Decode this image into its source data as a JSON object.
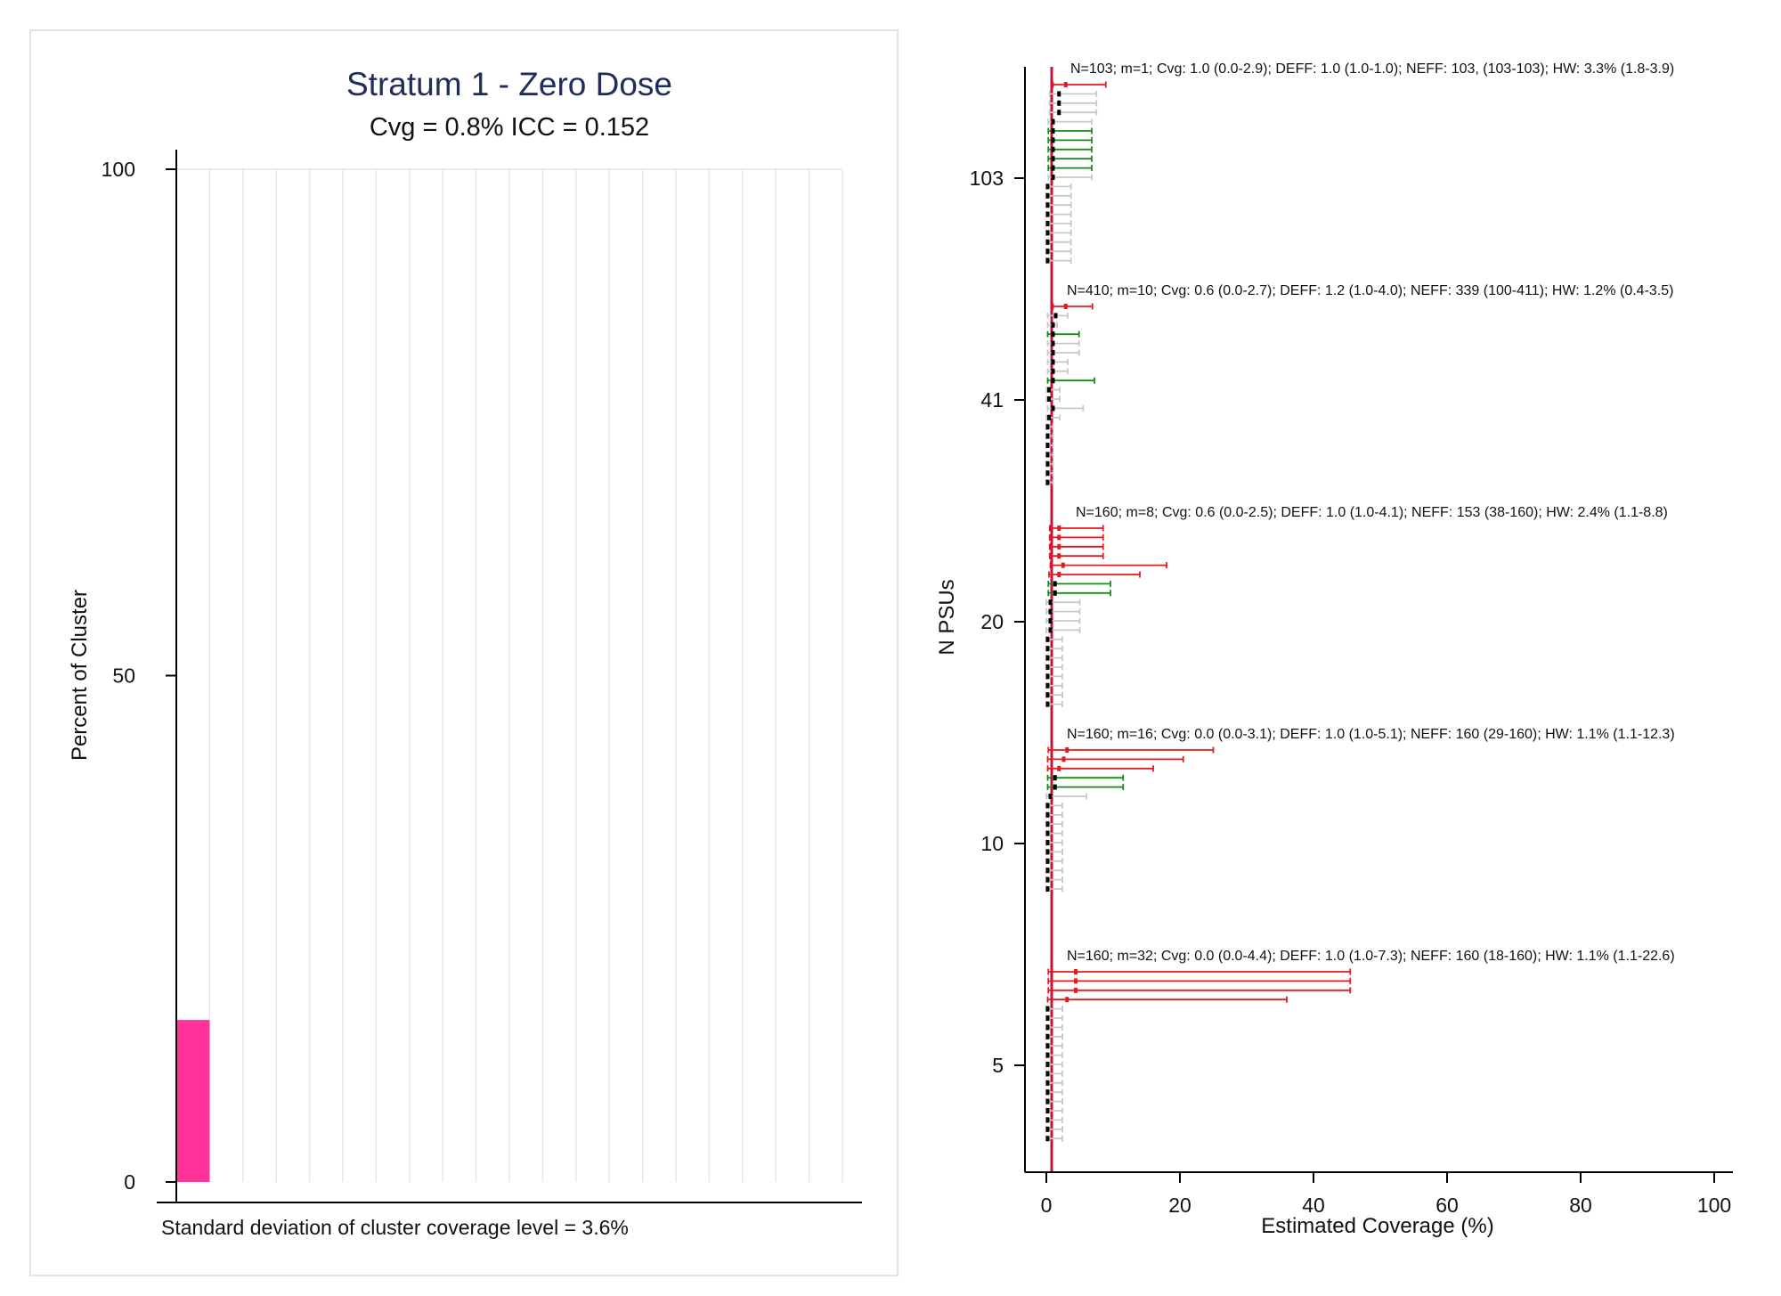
{
  "left_panel": {
    "title": "Stratum 1 - Zero Dose",
    "subtitle": "Cvg = 0.8% ICC = 0.152",
    "footnote": "Standard deviation of cluster coverage level = 3.6%"
  },
  "right_panel": {
    "ylabel": "N PSUs",
    "xlabel": "Estimated Coverage (%)"
  },
  "colors": {
    "bar": "#ff3399",
    "refline": "#c0143c",
    "ci_gray": "#c8c8c8",
    "ci_red": "#e41a1c",
    "ci_green": "#1a8a1a",
    "point_black": "#000000",
    "grid": "#e6e6e6",
    "title": "#1f2d5a"
  },
  "chart_data": [
    {
      "type": "bar",
      "title": "Stratum 1 - Zero Dose",
      "subtitle": "Cvg = 0.8% ICC = 0.152",
      "xlabel": "Standard deviation of cluster coverage level = 3.6%",
      "ylabel": "Percent of Cluster",
      "bins": 20,
      "values": [
        16,
        0,
        0,
        0,
        0,
        0,
        0,
        0,
        0,
        0,
        0,
        0,
        0,
        0,
        0,
        0,
        0,
        0,
        0,
        0
      ],
      "ylim": [
        0,
        100
      ],
      "yticks": [
        0,
        50,
        100
      ],
      "grid": true
    },
    {
      "type": "scatter",
      "xlabel": "Estimated Coverage (%)",
      "ylabel": "N PSUs",
      "xlim": [
        0,
        100
      ],
      "xticks": [
        0,
        20,
        40,
        60,
        80,
        100
      ],
      "yticks": [
        "5",
        "10",
        "20",
        "41",
        "103"
      ],
      "reference_line_x": 0.8,
      "groups": [
        {
          "ytick": "103",
          "annotation": "N=103; m=1; Cvg: 1.0 (0.0-2.9); DEFF: 1.0 (1.0-1.0); NEFF: 103, (103-103); HW: 3.3% (1.8-3.9)",
          "intervals": [
            {
              "est": 2.9,
              "lo": 1.0,
              "hi": 8.9,
              "c": "red"
            },
            {
              "est": 1.9,
              "lo": 0.5,
              "hi": 7.5,
              "c": "gray"
            },
            {
              "est": 1.9,
              "lo": 0.5,
              "hi": 7.5,
              "c": "gray"
            },
            {
              "est": 1.9,
              "lo": 0.5,
              "hi": 7.5,
              "c": "gray"
            },
            {
              "est": 1.0,
              "lo": 0.3,
              "hi": 6.8,
              "c": "gray"
            },
            {
              "est": 1.0,
              "lo": 0.3,
              "hi": 6.8,
              "c": "green"
            },
            {
              "est": 1.0,
              "lo": 0.3,
              "hi": 6.8,
              "c": "green"
            },
            {
              "est": 1.0,
              "lo": 0.3,
              "hi": 6.8,
              "c": "green"
            },
            {
              "est": 1.0,
              "lo": 0.3,
              "hi": 6.8,
              "c": "green"
            },
            {
              "est": 1.0,
              "lo": 0.3,
              "hi": 6.8,
              "c": "green"
            },
            {
              "est": 1.0,
              "lo": 0.3,
              "hi": 6.8,
              "c": "gray"
            },
            {
              "est": 0.2,
              "lo": 0.0,
              "hi": 3.7,
              "c": "gray"
            },
            {
              "est": 0.2,
              "lo": 0.0,
              "hi": 3.7,
              "c": "gray"
            },
            {
              "est": 0.2,
              "lo": 0.0,
              "hi": 3.7,
              "c": "gray"
            },
            {
              "est": 0.2,
              "lo": 0.0,
              "hi": 3.7,
              "c": "gray"
            },
            {
              "est": 0.2,
              "lo": 0.0,
              "hi": 3.7,
              "c": "gray"
            },
            {
              "est": 0.2,
              "lo": 0.0,
              "hi": 3.7,
              "c": "gray"
            },
            {
              "est": 0.2,
              "lo": 0.0,
              "hi": 3.7,
              "c": "gray"
            },
            {
              "est": 0.2,
              "lo": 0.0,
              "hi": 3.7,
              "c": "gray"
            },
            {
              "est": 0.2,
              "lo": 0.0,
              "hi": 3.7,
              "c": "gray"
            }
          ]
        },
        {
          "ytick": "41",
          "annotation": "N=410; m=10; Cvg: 0.6 (0.0-2.7); DEFF: 1.2 (1.0-4.0); NEFF: 339 (100-411); HW: 1.2% (0.4-3.5)",
          "intervals": [
            {
              "est": 2.9,
              "lo": 1.0,
              "hi": 6.9,
              "c": "red"
            },
            {
              "est": 1.4,
              "lo": 0.2,
              "hi": 3.2,
              "c": "gray"
            },
            {
              "est": 1.0,
              "lo": 0.2,
              "hi": 1.6,
              "c": "gray"
            },
            {
              "est": 1.0,
              "lo": 0.2,
              "hi": 4.9,
              "c": "green"
            },
            {
              "est": 1.0,
              "lo": 0.2,
              "hi": 4.9,
              "c": "gray"
            },
            {
              "est": 1.0,
              "lo": 0.2,
              "hi": 4.9,
              "c": "gray"
            },
            {
              "est": 1.0,
              "lo": 0.2,
              "hi": 3.2,
              "c": "gray"
            },
            {
              "est": 1.0,
              "lo": 0.2,
              "hi": 3.2,
              "c": "gray"
            },
            {
              "est": 1.0,
              "lo": 0.2,
              "hi": 7.2,
              "c": "green"
            },
            {
              "est": 0.4,
              "lo": 0.0,
              "hi": 2.0,
              "c": "gray"
            },
            {
              "est": 0.4,
              "lo": 0.0,
              "hi": 2.0,
              "c": "gray"
            },
            {
              "est": 1.0,
              "lo": 0.2,
              "hi": 5.5,
              "c": "gray"
            },
            {
              "est": 0.4,
              "lo": 0.0,
              "hi": 2.0,
              "c": "gray"
            },
            {
              "est": 0.2,
              "lo": 0.0,
              "hi": 1.0,
              "c": "gray"
            },
            {
              "est": 0.2,
              "lo": 0.0,
              "hi": 1.0,
              "c": "gray"
            },
            {
              "est": 0.2,
              "lo": 0.0,
              "hi": 1.0,
              "c": "gray"
            },
            {
              "est": 0.2,
              "lo": 0.0,
              "hi": 1.0,
              "c": "gray"
            },
            {
              "est": 0.2,
              "lo": 0.0,
              "hi": 1.0,
              "c": "gray"
            },
            {
              "est": 0.2,
              "lo": 0.0,
              "hi": 1.0,
              "c": "gray"
            },
            {
              "est": 0.2,
              "lo": 0.0,
              "hi": 1.0,
              "c": "gray"
            }
          ]
        },
        {
          "ytick": "20",
          "annotation": "N=160; m=8; Cvg: 0.6 (0.0-2.5); DEFF: 1.0 (1.0-4.1); NEFF: 153 (38-160); HW: 2.4% (1.1-8.8)",
          "intervals": [
            {
              "est": 1.9,
              "lo": 0.5,
              "hi": 8.5,
              "c": "red"
            },
            {
              "est": 1.9,
              "lo": 0.5,
              "hi": 8.5,
              "c": "red"
            },
            {
              "est": 1.9,
              "lo": 0.5,
              "hi": 8.5,
              "c": "red"
            },
            {
              "est": 1.9,
              "lo": 0.5,
              "hi": 8.5,
              "c": "red"
            },
            {
              "est": 2.5,
              "lo": 0.6,
              "hi": 18.0,
              "c": "red"
            },
            {
              "est": 1.9,
              "lo": 0.4,
              "hi": 14.0,
              "c": "red"
            },
            {
              "est": 1.3,
              "lo": 0.3,
              "hi": 9.6,
              "c": "green"
            },
            {
              "est": 1.3,
              "lo": 0.3,
              "hi": 9.6,
              "c": "green"
            },
            {
              "est": 0.6,
              "lo": 0.0,
              "hi": 5.0,
              "c": "gray"
            },
            {
              "est": 0.6,
              "lo": 0.0,
              "hi": 5.0,
              "c": "gray"
            },
            {
              "est": 0.6,
              "lo": 0.0,
              "hi": 5.0,
              "c": "gray"
            },
            {
              "est": 0.6,
              "lo": 0.0,
              "hi": 5.0,
              "c": "gray"
            },
            {
              "est": 0.2,
              "lo": 0.0,
              "hi": 2.4,
              "c": "gray"
            },
            {
              "est": 0.2,
              "lo": 0.0,
              "hi": 2.4,
              "c": "gray"
            },
            {
              "est": 0.2,
              "lo": 0.0,
              "hi": 2.4,
              "c": "gray"
            },
            {
              "est": 0.2,
              "lo": 0.0,
              "hi": 2.4,
              "c": "gray"
            },
            {
              "est": 0.2,
              "lo": 0.0,
              "hi": 2.4,
              "c": "gray"
            },
            {
              "est": 0.2,
              "lo": 0.0,
              "hi": 2.4,
              "c": "gray"
            },
            {
              "est": 0.2,
              "lo": 0.0,
              "hi": 2.4,
              "c": "gray"
            },
            {
              "est": 0.2,
              "lo": 0.0,
              "hi": 2.4,
              "c": "gray"
            }
          ]
        },
        {
          "ytick": "10",
          "annotation": "N=160; m=16; Cvg: 0.0 (0.0-3.1); DEFF: 1.0 (1.0-5.1); NEFF: 160 (29-160); HW: 1.1% (1.1-12.3)",
          "intervals": [
            {
              "est": 3.1,
              "lo": 0.3,
              "hi": 25.0,
              "c": "red"
            },
            {
              "est": 2.6,
              "lo": 0.2,
              "hi": 20.5,
              "c": "red"
            },
            {
              "est": 1.9,
              "lo": 0.2,
              "hi": 16.0,
              "c": "red"
            },
            {
              "est": 1.3,
              "lo": 0.2,
              "hi": 11.5,
              "c": "green"
            },
            {
              "est": 1.3,
              "lo": 0.2,
              "hi": 11.5,
              "c": "green"
            },
            {
              "est": 0.6,
              "lo": 0.0,
              "hi": 6.0,
              "c": "gray"
            },
            {
              "est": 0.2,
              "lo": 0.0,
              "hi": 2.4,
              "c": "gray"
            },
            {
              "est": 0.2,
              "lo": 0.0,
              "hi": 2.4,
              "c": "gray"
            },
            {
              "est": 0.2,
              "lo": 0.0,
              "hi": 2.4,
              "c": "gray"
            },
            {
              "est": 0.2,
              "lo": 0.0,
              "hi": 2.4,
              "c": "gray"
            },
            {
              "est": 0.2,
              "lo": 0.0,
              "hi": 2.4,
              "c": "gray"
            },
            {
              "est": 0.2,
              "lo": 0.0,
              "hi": 2.4,
              "c": "gray"
            },
            {
              "est": 0.2,
              "lo": 0.0,
              "hi": 2.4,
              "c": "gray"
            },
            {
              "est": 0.2,
              "lo": 0.0,
              "hi": 2.4,
              "c": "gray"
            },
            {
              "est": 0.2,
              "lo": 0.0,
              "hi": 2.4,
              "c": "gray"
            },
            {
              "est": 0.2,
              "lo": 0.0,
              "hi": 2.4,
              "c": "gray"
            }
          ]
        },
        {
          "ytick": "5",
          "annotation": "N=160; m=32; Cvg: 0.0 (0.0-4.4); DEFF: 1.0 (1.0-7.3); NEFF: 160 (18-160); HW: 1.1% (1.1-22.6)",
          "intervals": [
            {
              "est": 4.4,
              "lo": 0.3,
              "hi": 45.5,
              "c": "red"
            },
            {
              "est": 4.4,
              "lo": 0.3,
              "hi": 45.5,
              "c": "red"
            },
            {
              "est": 4.4,
              "lo": 0.3,
              "hi": 45.5,
              "c": "red"
            },
            {
              "est": 3.1,
              "lo": 0.2,
              "hi": 36.0,
              "c": "red"
            },
            {
              "est": 0.2,
              "lo": 0.0,
              "hi": 2.4,
              "c": "gray"
            },
            {
              "est": 0.2,
              "lo": 0.0,
              "hi": 2.4,
              "c": "gray"
            },
            {
              "est": 0.2,
              "lo": 0.0,
              "hi": 2.4,
              "c": "gray"
            },
            {
              "est": 0.2,
              "lo": 0.0,
              "hi": 2.4,
              "c": "gray"
            },
            {
              "est": 0.2,
              "lo": 0.0,
              "hi": 2.4,
              "c": "gray"
            },
            {
              "est": 0.2,
              "lo": 0.0,
              "hi": 2.4,
              "c": "gray"
            },
            {
              "est": 0.2,
              "lo": 0.0,
              "hi": 2.4,
              "c": "gray"
            },
            {
              "est": 0.2,
              "lo": 0.0,
              "hi": 2.4,
              "c": "gray"
            },
            {
              "est": 0.2,
              "lo": 0.0,
              "hi": 2.4,
              "c": "gray"
            },
            {
              "est": 0.2,
              "lo": 0.0,
              "hi": 2.4,
              "c": "gray"
            },
            {
              "est": 0.2,
              "lo": 0.0,
              "hi": 2.4,
              "c": "gray"
            },
            {
              "est": 0.2,
              "lo": 0.0,
              "hi": 2.4,
              "c": "gray"
            },
            {
              "est": 0.2,
              "lo": 0.0,
              "hi": 2.4,
              "c": "gray"
            },
            {
              "est": 0.2,
              "lo": 0.0,
              "hi": 2.4,
              "c": "gray"
            },
            {
              "est": 0.2,
              "lo": 0.0,
              "hi": 2.4,
              "c": "gray"
            }
          ]
        }
      ]
    }
  ]
}
